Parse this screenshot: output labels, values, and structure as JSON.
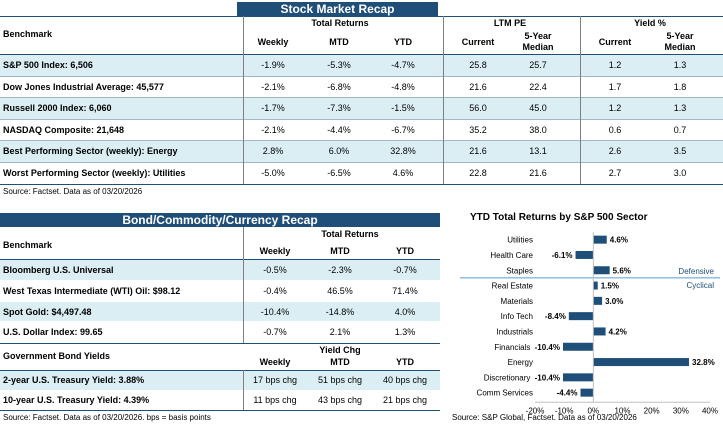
{
  "stock": {
    "title": "Stock Market Recap",
    "col_groups": {
      "total_returns": "Total Returns",
      "ltm_pe": "LTM PE",
      "yield": "Yield %"
    },
    "benchmark_header": "Benchmark",
    "cols": [
      "Weekly",
      "MTD",
      "YTD",
      "Current",
      "5-Year Median",
      "Current",
      "5-Year Median"
    ],
    "rows": [
      {
        "name": "S&P 500 Index: 6,506",
        "v": [
          "-1.9%",
          "-5.3%",
          "-4.7%",
          "25.8",
          "25.7",
          "1.2",
          "1.3"
        ]
      },
      {
        "name": "Dow Jones Industrial Average: 45,577",
        "v": [
          "-2.1%",
          "-6.8%",
          "-4.8%",
          "21.6",
          "22.4",
          "1.7",
          "1.8"
        ]
      },
      {
        "name": "Russell 2000 Index: 6,060",
        "v": [
          "-1.7%",
          "-7.3%",
          "-1.5%",
          "56.0",
          "45.0",
          "1.2",
          "1.3"
        ]
      },
      {
        "name": "NASDAQ Composite: 21,648",
        "v": [
          "-2.1%",
          "-4.4%",
          "-6.7%",
          "35.2",
          "38.0",
          "0.6",
          "0.7"
        ]
      },
      {
        "name": "Best Performing Sector (weekly): Energy",
        "v": [
          "2.8%",
          "6.0%",
          "32.8%",
          "21.6",
          "13.1",
          "2.6",
          "3.5"
        ]
      },
      {
        "name": "Worst Performing Sector (weekly): Utilities",
        "v": [
          "-5.0%",
          "-6.5%",
          "4.6%",
          "22.8",
          "21.6",
          "2.7",
          "3.0"
        ]
      }
    ],
    "source": "Source: Factset. Data as of 03/20/2026"
  },
  "bond": {
    "title": "Bond/Commodity/Currency Recap",
    "group": "Total Returns",
    "benchmark_header": "Benchmark",
    "cols": [
      "Weekly",
      "MTD",
      "YTD"
    ],
    "rows": [
      {
        "name": "Bloomberg U.S. Universal",
        "v": [
          "-0.5%",
          "-2.3%",
          "-0.7%"
        ]
      },
      {
        "name": "West Texas Intermediate (WTI) Oil: $98.12",
        "v": [
          "-0.4%",
          "46.5%",
          "71.4%"
        ]
      },
      {
        "name": "Spot Gold: $4,497.48",
        "v": [
          "-10.4%",
          "-14.8%",
          "4.0%"
        ]
      },
      {
        "name": "U.S. Dollar Index: 99.65",
        "v": [
          "-0.7%",
          "2.1%",
          "1.3%"
        ]
      }
    ],
    "gov_header": "Government Bond Yields",
    "yield_group": "Yield Chg",
    "gov_rows": [
      {
        "name": "2-year U.S. Treasury Yield: 3.88%",
        "v": [
          "17 bps chg",
          "51 bps chg",
          "40 bps chg"
        ]
      },
      {
        "name": "10-year U.S. Treasury Yield: 4.39%",
        "v": [
          "11 bps chg",
          "43 bps chg",
          "21 bps chg"
        ]
      }
    ],
    "source": "Source: Factset. Data as of 03/20/2026. bps = basis points"
  },
  "chart_data": {
    "type": "bar",
    "orientation": "horizontal",
    "title": "YTD Total Returns by S&P 500 Sector",
    "categories": [
      "Utilities",
      "Health Care",
      "Staples",
      "Real Estate",
      "Materials",
      "Info Tech",
      "Industrials",
      "Financials",
      "Energy",
      "Discretionary",
      "Comm Services"
    ],
    "values": [
      4.6,
      -6.1,
      5.6,
      1.5,
      3.0,
      -8.4,
      4.2,
      -10.4,
      32.8,
      -10.4,
      -4.4
    ],
    "value_labels": [
      "4.6%",
      "-6.1%",
      "5.6%",
      "1.5%",
      "3.0%",
      "-8.4%",
      "4.2%",
      "-10.4%",
      "32.8%",
      "-10.4%",
      "-4.4%"
    ],
    "xlim": [
      -20,
      40
    ],
    "xticks": [
      "-20%",
      "-10%",
      "0%",
      "10%",
      "20%",
      "30%",
      "40%"
    ],
    "groups": {
      "defensive": "Defensive",
      "cyclical": "Cyclical"
    },
    "bar_color": "#1f4e79",
    "source": "Source: S&P Global, Factset. Data as of 03/20/2026"
  }
}
